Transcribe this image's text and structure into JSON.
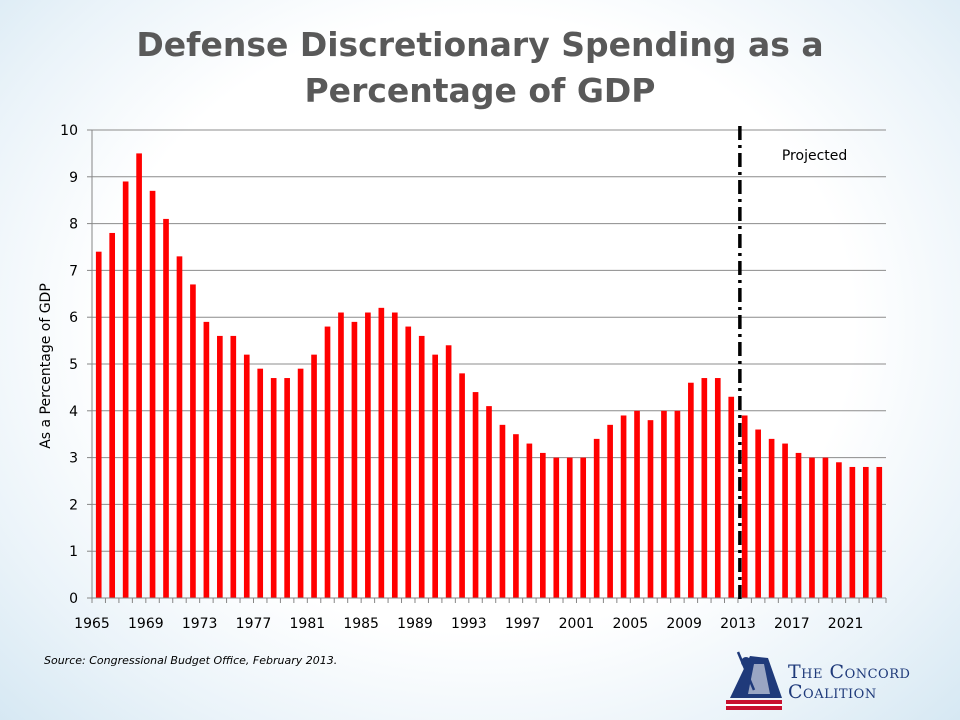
{
  "chart_data": {
    "type": "bar",
    "title_line1": "Defense Discretionary Spending as a",
    "title_line2": "Percentage of GDP",
    "ylabel": "As a Percentage of GDP",
    "ylim": [
      0,
      10
    ],
    "yticks": [
      0,
      1,
      2,
      3,
      4,
      5,
      6,
      7,
      8,
      9,
      10
    ],
    "x_start": 1965,
    "xtick_labels": [
      "1965",
      "1969",
      "1973",
      "1977",
      "1981",
      "1985",
      "1989",
      "1993",
      "1997",
      "2001",
      "2005",
      "2009",
      "2013",
      "2017",
      "2021"
    ],
    "years": [
      1965,
      1966,
      1967,
      1968,
      1969,
      1970,
      1971,
      1972,
      1973,
      1974,
      1975,
      1976,
      1977,
      1978,
      1979,
      1980,
      1981,
      1982,
      1983,
      1984,
      1985,
      1986,
      1987,
      1988,
      1989,
      1990,
      1991,
      1992,
      1993,
      1994,
      1995,
      1996,
      1997,
      1998,
      1999,
      2000,
      2001,
      2002,
      2003,
      2004,
      2005,
      2006,
      2007,
      2008,
      2009,
      2010,
      2011,
      2012,
      2013,
      2014,
      2015,
      2016,
      2017,
      2018,
      2019,
      2020,
      2021,
      2022,
      2023
    ],
    "values": [
      7.4,
      7.8,
      8.9,
      9.5,
      8.7,
      8.1,
      7.3,
      6.7,
      5.9,
      5.6,
      5.6,
      5.2,
      4.9,
      4.7,
      4.7,
      4.9,
      5.2,
      5.8,
      6.1,
      5.9,
      6.1,
      6.2,
      6.1,
      5.8,
      5.6,
      5.2,
      5.4,
      4.8,
      4.4,
      4.1,
      3.7,
      3.5,
      3.3,
      3.1,
      3.0,
      3.0,
      3.0,
      3.4,
      3.7,
      3.9,
      4.0,
      3.8,
      4.0,
      4.0,
      4.6,
      4.7,
      4.7,
      4.3,
      3.9,
      3.6,
      3.4,
      3.3,
      3.1,
      3.0,
      3.0,
      2.9,
      2.8,
      2.8,
      2.8
    ],
    "bar_color": "#ff0000",
    "projection_start_year": 2013,
    "projected_label": "Projected",
    "grid": true
  },
  "source": "Source: Congressional Budget Office, February 2013.",
  "logo": {
    "line1": "The Concord",
    "line2": "Coalition"
  }
}
